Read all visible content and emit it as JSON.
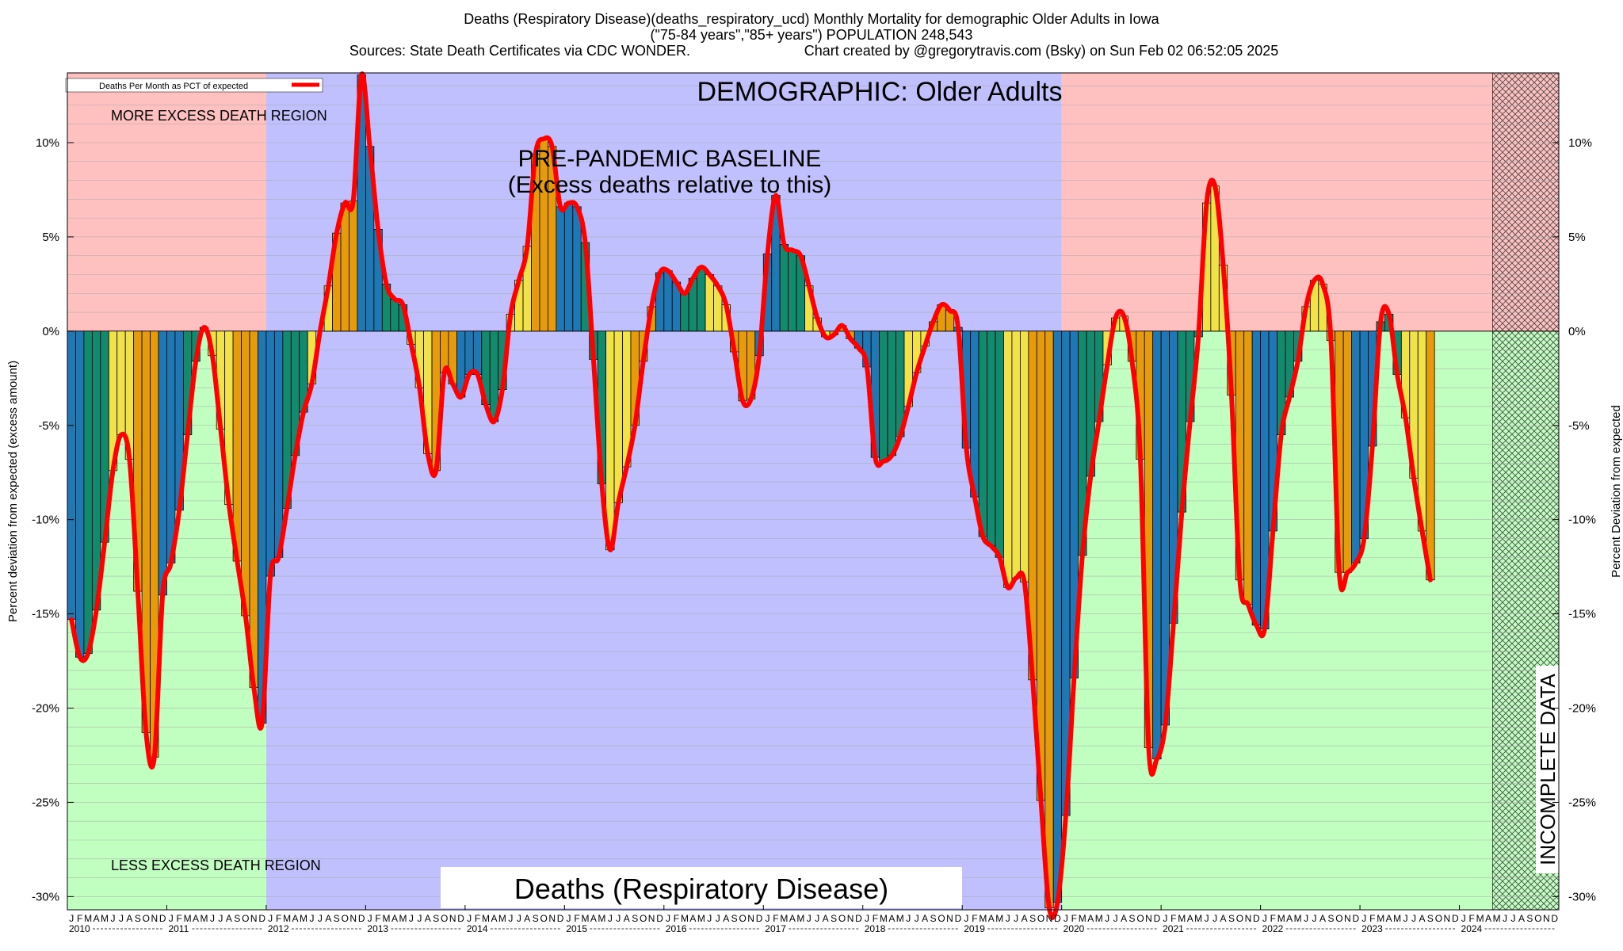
{
  "chart_data": {
    "type": "bar",
    "title": "Deaths (Respiratory Disease)(deaths_respiratory_ucd) Monthly Mortality for demographic Older Adults in Iowa",
    "subtitle": "(\"75-84 years\",\"85+ years\") POPULATION 248,543",
    "sources": "Sources: State Death Certificates via CDC WONDER.",
    "credit": "Chart created by @gregorytravis.com (Bsky) on Sun Feb 02 06:52:05 2025",
    "ylabel_left": "Percent deviation from expected (excess amount)",
    "ylabel_right": "Percent Deviation from expected",
    "ylim": [
      -30.7,
      13.7
    ],
    "yticks": [
      10,
      5,
      0,
      -5,
      -10,
      -15,
      -20,
      -25,
      -30
    ],
    "ytick_labels": [
      "10%",
      "5%",
      "0%",
      "-5%",
      "-10%",
      "-15%",
      "-20%",
      "-25%",
      "-30%"
    ],
    "legend": "Deaths Per Month as PCT of expected",
    "month_letters": [
      "J",
      "F",
      "M",
      "A",
      "M",
      "J",
      "J",
      "A",
      "S",
      "O",
      "N",
      "D"
    ],
    "years": [
      "2010",
      "2011",
      "2012",
      "2013",
      "2014",
      "2015",
      "2016",
      "2017",
      "2018",
      "2019",
      "2020",
      "2021",
      "2022",
      "2023",
      "2024"
    ],
    "start_year": 2010,
    "annotations": {
      "demographic": "DEMOGRAPHIC: Older Adults",
      "baseline_line1": "PRE-PANDEMIC BASELINE",
      "baseline_line2": "(Excess deaths relative to this)",
      "more_excess": "MORE EXCESS DEATH REGION",
      "less_excess": "LESS EXCESS DEATH REGION",
      "incomplete": "INCOMPLETE DATA",
      "cause": "Deaths (Respiratory Disease)"
    },
    "colors": {
      "winter": "#1f77b4",
      "spring": "#138a6e",
      "summer": "#f2e24a",
      "fall": "#e59b0c",
      "line": "#ff0000",
      "more_region": "#ffc0c0",
      "less_region": "#c0ffc0",
      "baseline_region": "#c0c0ff"
    },
    "series": [
      {
        "name": "Deaths Per Month as PCT of expected",
        "values": [
          -15.3,
          -17.3,
          -17.1,
          -14.8,
          -11.2,
          -7.4,
          -5.5,
          -6.8,
          -13.8,
          -21.3,
          -22.6,
          -14.0,
          -12.3,
          -9.5,
          -5.5,
          -1.6,
          0.2,
          -1.3,
          -5.2,
          -9.2,
          -12.2,
          -15.1,
          -18.9,
          -20.8,
          -13.0,
          -12.0,
          -9.4,
          -6.6,
          -4.3,
          -2.8,
          0.0,
          2.4,
          5.2,
          6.8,
          6.9,
          13.6,
          9.8,
          5.4,
          2.5,
          1.7,
          1.4,
          -0.7,
          -3.0,
          -6.5,
          -7.4,
          -2.2,
          -2.8,
          -3.5,
          -2.3,
          -2.3,
          -3.9,
          -4.8,
          -3.1,
          0.9,
          2.7,
          4.5,
          9.4,
          10.2,
          9.8,
          6.6,
          6.8,
          6.6,
          4.7,
          -1.5,
          -8.1,
          -11.6,
          -9.1,
          -7.2,
          -5.0,
          -1.6,
          1.3,
          3.1,
          3.2,
          2.6,
          2.0,
          2.8,
          3.4,
          3.0,
          2.4,
          1.4,
          -1.1,
          -3.7,
          -3.6,
          -1.3,
          4.1,
          7.2,
          4.6,
          4.3,
          4.0,
          2.4,
          0.7,
          -0.3,
          -0.2,
          0.3,
          -0.4,
          -0.9,
          -1.9,
          -6.7,
          -6.9,
          -6.6,
          -5.6,
          -4.0,
          -2.2,
          -0.8,
          0.5,
          1.4,
          1.1,
          0.2,
          -6.2,
          -8.8,
          -10.9,
          -11.4,
          -12.0,
          -13.6,
          -13.1,
          -13.3,
          -18.5,
          -24.9,
          -30.6,
          -30.3,
          -25.7,
          -18.4,
          -11.9,
          -7.7,
          -4.8,
          -1.8,
          0.7,
          0.8,
          -1.6,
          -6.8,
          -22.1,
          -22.7,
          -20.9,
          -15.5,
          -9.6,
          -4.8,
          -0.3,
          6.8,
          7.7,
          3.5,
          -3.4,
          -13.2,
          -14.5,
          -15.6,
          -15.8,
          -10.6,
          -5.5,
          -3.5,
          -1.6,
          1.3,
          2.7,
          2.5,
          -0.5,
          -12.8,
          -12.8,
          -12.3,
          -11.0,
          -6.1,
          0.5,
          0.9,
          -2.3,
          -4.6,
          -7.8,
          -10.6,
          -13.2
        ]
      }
    ]
  }
}
